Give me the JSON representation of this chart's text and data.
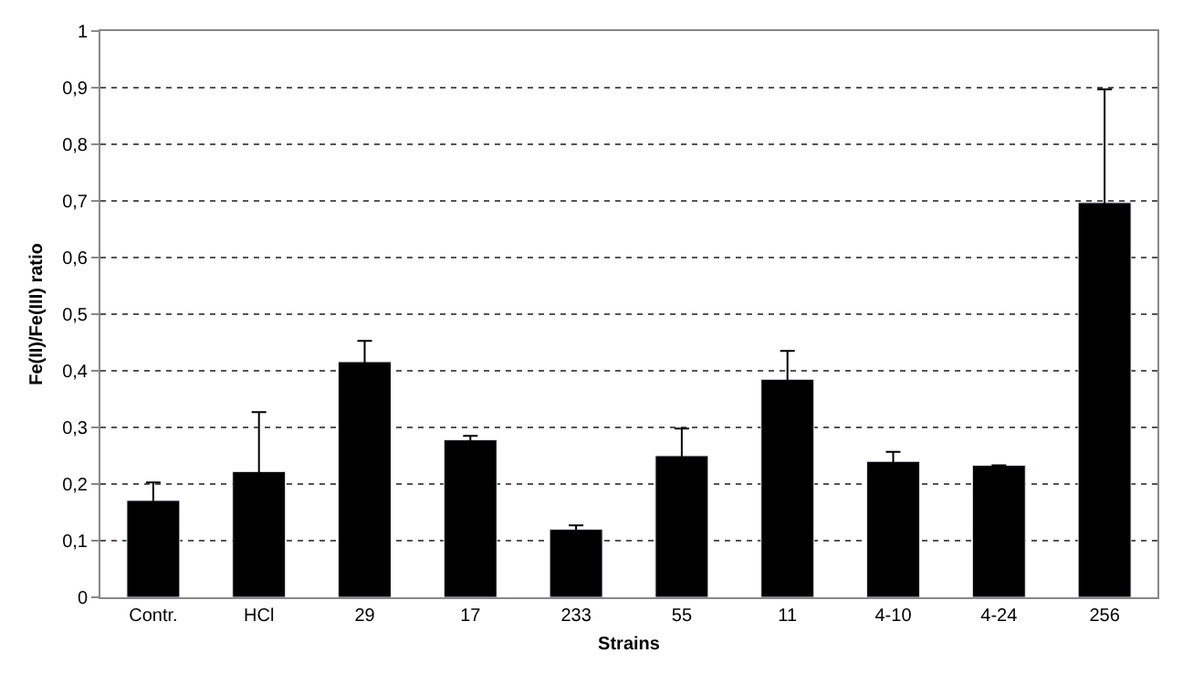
{
  "chart_data": {
    "type": "bar",
    "xlabel": "Strains",
    "ylabel": "Fe(II)/Fe(III) ratio",
    "categories": [
      "Contr.",
      "HCl",
      "29",
      "17",
      "233",
      "55",
      "11",
      "4-10",
      "4-24",
      "256"
    ],
    "values": [
      0.171,
      0.222,
      0.416,
      0.278,
      0.12,
      0.25,
      0.385,
      0.24,
      0.233,
      0.697
    ],
    "errors": [
      0.032,
      0.105,
      0.037,
      0.007,
      0.007,
      0.048,
      0.05,
      0.017,
      null,
      0.2
    ],
    "color": "#000000",
    "ylim": [
      0,
      1
    ],
    "yticks": [
      0,
      {
        "value": 0.1,
        "label": "0,1"
      },
      {
        "value": 0.2,
        "label": "0,2"
      },
      {
        "value": 0.3,
        "label": "0,3"
      },
      {
        "value": 0.4,
        "label": "0,4"
      },
      {
        "value": 0.5,
        "label": "0,5"
      },
      {
        "value": 0.6,
        "label": "0,6"
      },
      {
        "value": 0.7,
        "label": "0,7"
      },
      {
        "value": 0.8,
        "label": "0,8"
      },
      {
        "value": 0.9,
        "label": "0,9"
      },
      1
    ],
    "grid": "y"
  }
}
